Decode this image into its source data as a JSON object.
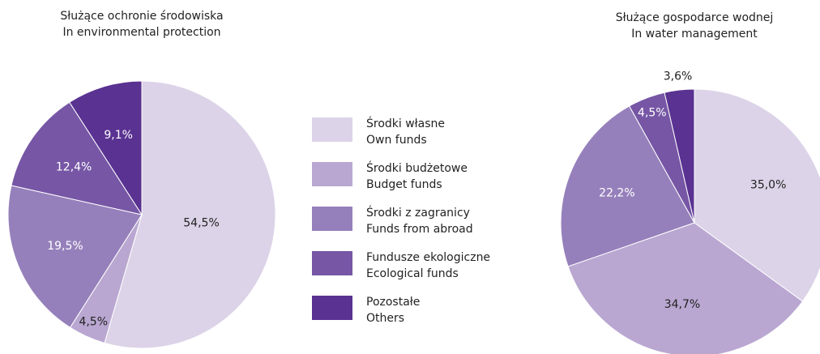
{
  "legend": [
    {
      "label": "Środki własne",
      "sublabel": "Own funds",
      "color": "#dcd3e8"
    },
    {
      "label": "Środki budżetowe",
      "sublabel": "Budget funds",
      "color": "#b9a7d1"
    },
    {
      "label": "Środki z zagranicy",
      "sublabel": "Funds from abroad",
      "color": "#9680bb"
    },
    {
      "label": "Fundusze ekologiczne",
      "sublabel": "Ecological funds",
      "color": "#7656a5"
    },
    {
      "label": "Pozostałe",
      "sublabel": "Others",
      "color": "#5a3291"
    }
  ],
  "chart_data": [
    {
      "type": "pie",
      "title": "Służące ochronie środowiska",
      "subtitle": "In environmental protection",
      "values": [
        54.5,
        4.5,
        19.5,
        12.4,
        9.1
      ],
      "value_labels": [
        "54,5%",
        "4,5%",
        "19,5%",
        "12,4%",
        "9,1%"
      ]
    },
    {
      "type": "pie",
      "title": "Służące gospodarce wodnej",
      "subtitle": "In water management",
      "values": [
        35.0,
        34.7,
        22.2,
        4.5,
        3.6
      ],
      "value_labels": [
        "35,0%",
        "34,7%",
        "22,2%",
        "4,5%",
        "3,6%"
      ]
    }
  ]
}
